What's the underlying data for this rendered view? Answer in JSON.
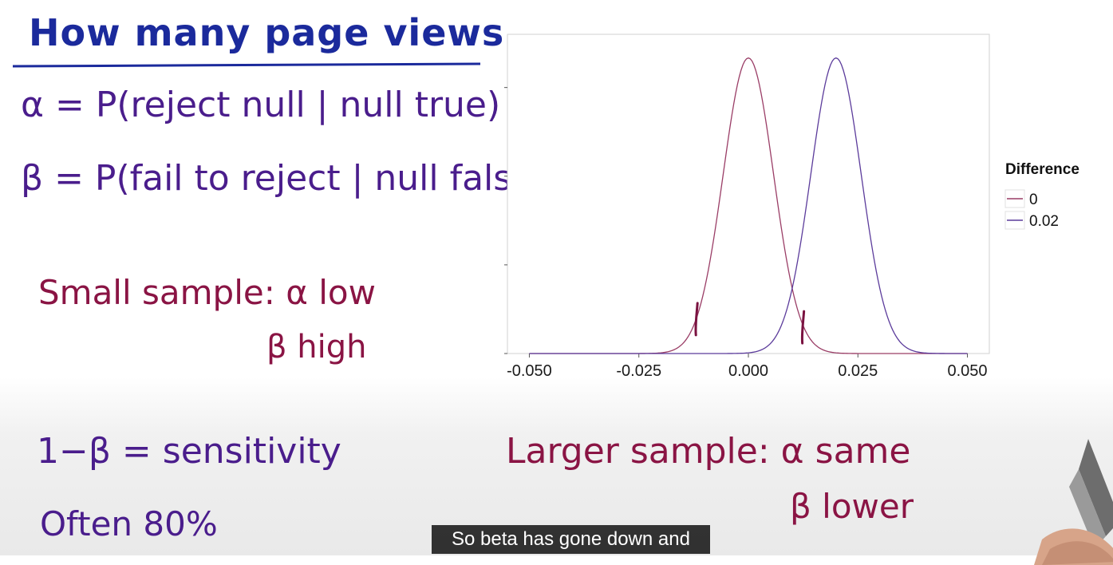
{
  "notes": {
    "title": "How many page views",
    "alpha_def": "α = P(reject null | null true)",
    "beta_def": "β = P(fail to reject | null false)",
    "small_line1": "Small sample: α low",
    "small_line2": "β high",
    "sensitivity": "1−β = sensitivity",
    "often": "Often 80%",
    "large_line1": "Larger sample: α same",
    "large_line2": "β lower"
  },
  "caption": "So beta has gone down and",
  "colors": {
    "series0": "#9a3d66",
    "series1": "#5b3b9b",
    "marker": "#7a1240"
  },
  "chart_data": {
    "type": "line",
    "title": "",
    "xlabel": "",
    "ylabel": "",
    "xlim": [
      -0.055,
      0.055
    ],
    "ylim": [
      0,
      1.08
    ],
    "x_ticks": [
      -0.05,
      -0.025,
      0.0,
      0.025,
      0.05
    ],
    "x_tick_labels": [
      "-0.050",
      "-0.025",
      "0.000",
      "0.025",
      "0.050"
    ],
    "y_ticks": [
      0,
      0.3,
      0.6,
      0.9
    ],
    "y_tick_labels": [
      "",
      "",
      "",
      ""
    ],
    "grid": false,
    "legend": {
      "title": "Difference",
      "placement": "right",
      "entries": [
        "0",
        "0.02"
      ]
    },
    "series": [
      {
        "name": "0",
        "distribution": "normal",
        "mean": 0.0,
        "sd": 0.00575,
        "peak": 1.0,
        "x_range": [
          -0.05,
          0.05
        ]
      },
      {
        "name": "0.02",
        "distribution": "normal",
        "mean": 0.02,
        "sd": 0.00575,
        "peak": 1.0,
        "x_range": [
          -0.05,
          0.05
        ]
      }
    ],
    "annotations": [
      {
        "type": "tick-mark",
        "x": -0.0118
      },
      {
        "type": "tick-mark",
        "x": 0.0125
      }
    ]
  }
}
